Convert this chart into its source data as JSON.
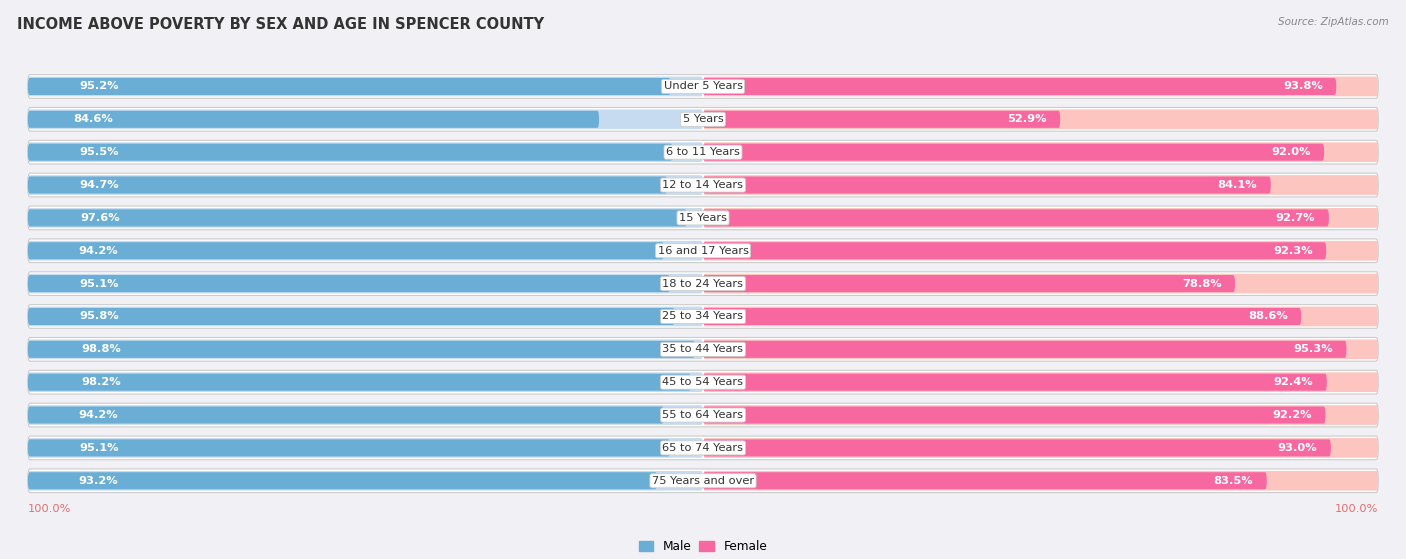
{
  "title": "INCOME ABOVE POVERTY BY SEX AND AGE IN SPENCER COUNTY",
  "source": "Source: ZipAtlas.com",
  "categories": [
    "Under 5 Years",
    "5 Years",
    "6 to 11 Years",
    "12 to 14 Years",
    "15 Years",
    "16 and 17 Years",
    "18 to 24 Years",
    "25 to 34 Years",
    "35 to 44 Years",
    "45 to 54 Years",
    "55 to 64 Years",
    "65 to 74 Years",
    "75 Years and over"
  ],
  "male_values": [
    95.2,
    84.6,
    95.5,
    94.7,
    97.6,
    94.2,
    95.1,
    95.8,
    98.8,
    98.2,
    94.2,
    95.1,
    93.2
  ],
  "female_values": [
    93.8,
    52.9,
    92.0,
    84.1,
    92.7,
    92.3,
    78.8,
    88.6,
    95.3,
    92.4,
    92.2,
    93.0,
    83.5
  ],
  "male_color": "#6aaed6",
  "female_color": "#f768a1",
  "male_color_light": "#c6dbef",
  "female_color_light": "#fcc5c0",
  "track_color": "#e0e0e8",
  "row_bg_color": "#ffffff",
  "outer_bg_color": "#f0f0f5",
  "max_value": 100.0,
  "title_fontsize": 10.5,
  "source_fontsize": 7.5,
  "label_fontsize": 8.2,
  "value_fontsize": 8.2,
  "axis_label_left": "100.0%",
  "axis_label_right": "100.0%"
}
